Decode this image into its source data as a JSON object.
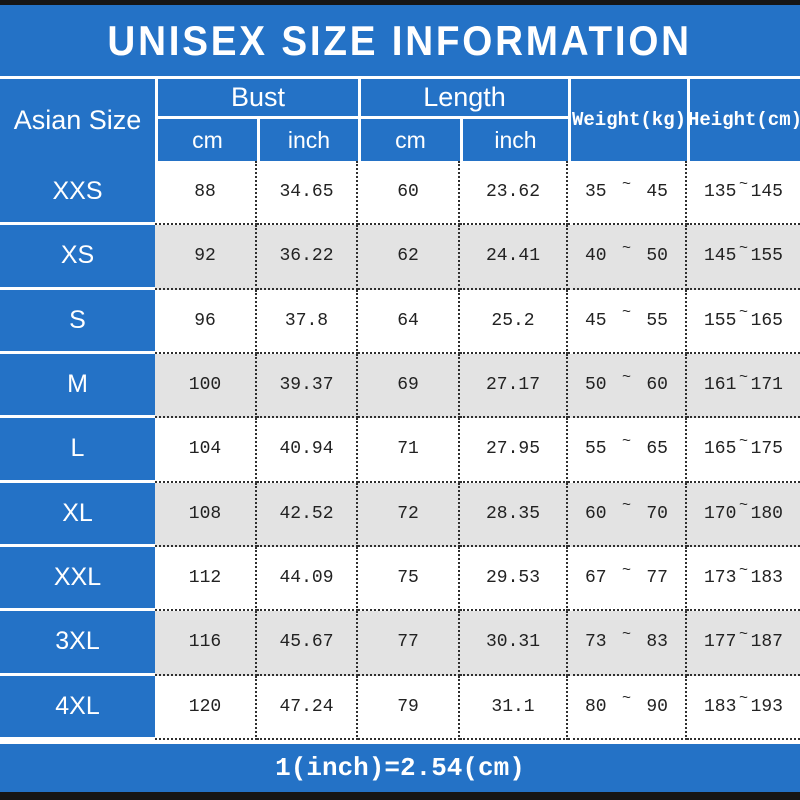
{
  "title": "UNISEX SIZE INFORMATION",
  "footer_note": "1(inch)=2.54(cm)",
  "colors": {
    "accent_blue": "#2472c6",
    "row_alt_gray": "#e3e3e3",
    "edge_bar_black": "#161616",
    "text_white": "#ffffff",
    "cell_text_dark": "#222222"
  },
  "table": {
    "tilde": "~",
    "header": {
      "size_column": "Asian Size",
      "bust_group": "Bust",
      "length_group": "Length",
      "sub_bust_cm": "cm",
      "sub_bust_inch": "inch",
      "sub_length_cm": "cm",
      "sub_length_inch": "inch",
      "weight_column": "Weight(kg)",
      "height_column": "Height(cm)"
    },
    "rows": [
      {
        "size": "XXS",
        "bust_cm": "88",
        "bust_inch": "34.65",
        "length_cm": "60",
        "length_inch": "23.62",
        "weight_min": "35",
        "weight_max": "45",
        "height_min": "135",
        "height_max": "145"
      },
      {
        "size": "XS",
        "bust_cm": "92",
        "bust_inch": "36.22",
        "length_cm": "62",
        "length_inch": "24.41",
        "weight_min": "40",
        "weight_max": "50",
        "height_min": "145",
        "height_max": "155"
      },
      {
        "size": "S",
        "bust_cm": "96",
        "bust_inch": "37.8",
        "length_cm": "64",
        "length_inch": "25.2",
        "weight_min": "45",
        "weight_max": "55",
        "height_min": "155",
        "height_max": "165"
      },
      {
        "size": "M",
        "bust_cm": "100",
        "bust_inch": "39.37",
        "length_cm": "69",
        "length_inch": "27.17",
        "weight_min": "50",
        "weight_max": "60",
        "height_min": "161",
        "height_max": "171"
      },
      {
        "size": "L",
        "bust_cm": "104",
        "bust_inch": "40.94",
        "length_cm": "71",
        "length_inch": "27.95",
        "weight_min": "55",
        "weight_max": "65",
        "height_min": "165",
        "height_max": "175"
      },
      {
        "size": "XL",
        "bust_cm": "108",
        "bust_inch": "42.52",
        "length_cm": "72",
        "length_inch": "28.35",
        "weight_min": "60",
        "weight_max": "70",
        "height_min": "170",
        "height_max": "180"
      },
      {
        "size": "XXL",
        "bust_cm": "112",
        "bust_inch": "44.09",
        "length_cm": "75",
        "length_inch": "29.53",
        "weight_min": "67",
        "weight_max": "77",
        "height_min": "173",
        "height_max": "183"
      },
      {
        "size": "3XL",
        "bust_cm": "116",
        "bust_inch": "45.67",
        "length_cm": "77",
        "length_inch": "30.31",
        "weight_min": "73",
        "weight_max": "83",
        "height_min": "177",
        "height_max": "187"
      },
      {
        "size": "4XL",
        "bust_cm": "120",
        "bust_inch": "47.24",
        "length_cm": "79",
        "length_inch": "31.1",
        "weight_min": "80",
        "weight_max": "90",
        "height_min": "183",
        "height_max": "193"
      }
    ]
  },
  "chart_data": {
    "type": "table",
    "title": "UNISEX SIZE INFORMATION",
    "columns": [
      "Asian Size",
      "Bust cm",
      "Bust inch",
      "Length cm",
      "Length inch",
      "Weight(kg) min",
      "Weight(kg) max",
      "Height(cm) min",
      "Height(cm) max"
    ],
    "rows": [
      [
        "XXS",
        "88",
        "34.65",
        "60",
        "23.62",
        "35",
        "45",
        "135",
        "145"
      ],
      [
        "XS",
        "92",
        "36.22",
        "62",
        "24.41",
        "40",
        "50",
        "145",
        "155"
      ],
      [
        "S",
        "96",
        "37.8",
        "64",
        "25.2",
        "45",
        "55",
        "155",
        "165"
      ],
      [
        "M",
        "100",
        "39.37",
        "69",
        "27.17",
        "50",
        "60",
        "161",
        "171"
      ],
      [
        "L",
        "104",
        "40.94",
        "71",
        "27.95",
        "55",
        "65",
        "165",
        "175"
      ],
      [
        "XL",
        "108",
        "42.52",
        "72",
        "28.35",
        "60",
        "70",
        "170",
        "180"
      ],
      [
        "XXL",
        "112",
        "44.09",
        "75",
        "29.53",
        "67",
        "77",
        "173",
        "183"
      ],
      [
        "3XL",
        "116",
        "45.67",
        "77",
        "30.31",
        "73",
        "83",
        "177",
        "187"
      ],
      [
        "4XL",
        "120",
        "47.24",
        "79",
        "31.1",
        "80",
        "90",
        "183",
        "193"
      ]
    ],
    "footnote": "1(inch)=2.54(cm)",
    "layout_hints": {
      "striped_rows": true,
      "header_color": "blue",
      "grid": "dotted"
    }
  }
}
